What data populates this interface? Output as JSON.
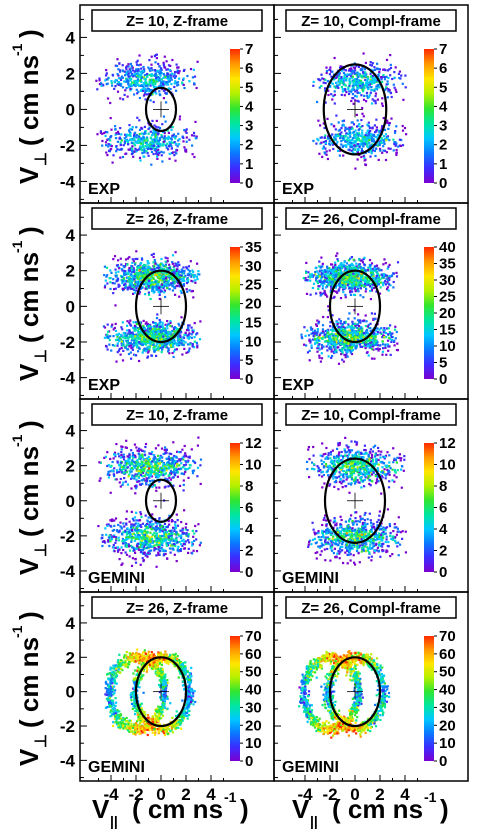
{
  "figure": {
    "y_axis_label": "V",
    "y_axis_sub": "⊥",
    "y_axis_unit": "( cm ns",
    "y_axis_unit_tail": ")",
    "x_axis_label": "V",
    "x_axis_sub": "||",
    "x_axis_unit": "( cm ns",
    "x_axis_unit_tail": ")",
    "exponent": "-1"
  },
  "colors": {
    "palette": [
      "#7a00d0",
      "#3c2cff",
      "#0a78ff",
      "#00c8ff",
      "#00e6a0",
      "#30e630",
      "#b4f000",
      "#ffe600",
      "#ff9800",
      "#ff2a00"
    ],
    "frame": "#000000",
    "background": "#ffffff"
  },
  "chart_data": [
    {
      "type": "heatmap",
      "title": "Z= 10, Z-frame",
      "label": "EXP",
      "xlim": [
        -6,
        6
      ],
      "ylim": [
        -5.2,
        5.8
      ],
      "y_ticks": [
        -4,
        -2,
        0,
        2,
        4
      ],
      "x_ticks": [],
      "colorbar": {
        "max": 7,
        "ticks": [
          0,
          1,
          2,
          3,
          4,
          5,
          6,
          7
        ]
      },
      "circle": {
        "center": [
          0,
          0
        ],
        "radius": 1.2
      },
      "cross": [
        0,
        0
      ],
      "distribution": {
        "shape": "two-lobe",
        "lobe_center_x": -1.2,
        "lobe_y": 1.7,
        "spread_x": 3.3,
        "spread_y": 0.9,
        "density": "sparse"
      }
    },
    {
      "type": "heatmap",
      "title": "Z= 10, Compl-frame",
      "label": "EXP",
      "xlim": [
        -6,
        6
      ],
      "ylim": [
        -5.2,
        5.8
      ],
      "y_ticks": [],
      "x_ticks": [],
      "colorbar": {
        "max": 7,
        "ticks": [
          0,
          1,
          2,
          3,
          4,
          5,
          6,
          7
        ]
      },
      "circle": {
        "center": [
          0,
          0
        ],
        "radius": 2.5
      },
      "cross": [
        0,
        0
      ],
      "distribution": {
        "shape": "two-lobe",
        "lobe_center_x": 0.3,
        "lobe_y": 1.6,
        "spread_x": 3.0,
        "spread_y": 0.9,
        "density": "sparse"
      }
    },
    {
      "type": "heatmap",
      "title": "Z= 26, Z-frame",
      "label": "EXP",
      "xlim": [
        -6,
        6
      ],
      "ylim": [
        -5.2,
        5.8
      ],
      "y_ticks": [
        -4,
        -2,
        0,
        2,
        4
      ],
      "x_ticks": [],
      "colorbar": {
        "max": 35,
        "ticks": [
          0,
          5,
          10,
          15,
          20,
          25,
          30,
          35
        ]
      },
      "circle": {
        "center": [
          0,
          0
        ],
        "radius": 2.0
      },
      "cross": [
        0,
        0
      ],
      "distribution": {
        "shape": "two-lobe",
        "lobe_center_x": -0.8,
        "lobe_y": 1.7,
        "spread_x": 3.1,
        "spread_y": 0.8,
        "density": "dense"
      }
    },
    {
      "type": "heatmap",
      "title": "Z= 26, Compl-frame",
      "label": "EXP",
      "xlim": [
        -6,
        6
      ],
      "ylim": [
        -5.2,
        5.8
      ],
      "y_ticks": [],
      "x_ticks": [],
      "colorbar": {
        "max": 40,
        "ticks": [
          0,
          5,
          10,
          15,
          20,
          25,
          30,
          35,
          40
        ]
      },
      "circle": {
        "center": [
          0,
          0
        ],
        "radius": 2.0
      },
      "cross": [
        0,
        0
      ],
      "distribution": {
        "shape": "two-lobe",
        "lobe_center_x": -0.5,
        "lobe_y": 1.7,
        "spread_x": 3.1,
        "spread_y": 0.8,
        "density": "dense"
      }
    },
    {
      "type": "heatmap",
      "title": "Z= 10, Z-frame",
      "label": "GEMINI",
      "xlim": [
        -6,
        6
      ],
      "ylim": [
        -5.2,
        5.8
      ],
      "y_ticks": [
        -4,
        -2,
        0,
        2,
        4
      ],
      "x_ticks": [],
      "colorbar": {
        "max": 12,
        "ticks": [
          0,
          2,
          4,
          6,
          8,
          10,
          12
        ]
      },
      "circle": {
        "center": [
          0,
          0
        ],
        "radius": 1.2
      },
      "cross": [
        0,
        0
      ],
      "distribution": {
        "shape": "two-lobe",
        "lobe_center_x": -1.0,
        "lobe_y": 2.0,
        "spread_x": 3.3,
        "spread_y": 1.0,
        "density": "medium"
      }
    },
    {
      "type": "heatmap",
      "title": "Z= 10, Compl-frame",
      "label": "GEMINI",
      "xlim": [
        -6,
        6
      ],
      "ylim": [
        -5.2,
        5.8
      ],
      "y_ticks": [],
      "x_ticks": [],
      "colorbar": {
        "max": 12,
        "ticks": [
          0,
          2,
          4,
          6,
          8,
          10,
          12
        ]
      },
      "circle": {
        "center": [
          0,
          0
        ],
        "radius": 2.4
      },
      "cross": [
        0,
        0
      ],
      "distribution": {
        "shape": "two-lobe",
        "lobe_center_x": 0.0,
        "lobe_y": 2.0,
        "spread_x": 3.2,
        "spread_y": 1.0,
        "density": "medium"
      }
    },
    {
      "type": "heatmap",
      "title": "Z= 26, Z-frame",
      "label": "GEMINI",
      "xlim": [
        -6,
        6
      ],
      "ylim": [
        -5.2,
        5.8
      ],
      "y_ticks": [
        -4,
        -2,
        0,
        2,
        4
      ],
      "x_ticks": [
        -4,
        -2,
        0,
        2,
        4
      ],
      "colorbar": {
        "max": 70,
        "ticks": [
          0,
          10,
          20,
          30,
          40,
          50,
          60,
          70
        ]
      },
      "circle": {
        "center": [
          0,
          0
        ],
        "radius": 2.0
      },
      "cross": [
        0,
        0
      ],
      "distribution": {
        "shape": "ring-pair",
        "ring_centers_x": [
          -2.0,
          0.0
        ],
        "ring_radius": 2.2,
        "density": "dense"
      }
    },
    {
      "type": "heatmap",
      "title": "Z= 26, Compl-frame",
      "label": "GEMINI",
      "xlim": [
        -6,
        6
      ],
      "ylim": [
        -5.2,
        5.8
      ],
      "y_ticks": [],
      "x_ticks": [
        -4,
        -2,
        0,
        2,
        4
      ],
      "colorbar": {
        "max": 70,
        "ticks": [
          0,
          10,
          20,
          30,
          40,
          50,
          60,
          70
        ]
      },
      "circle": {
        "center": [
          0,
          0
        ],
        "radius": 2.0
      },
      "cross": [
        0,
        0
      ],
      "distribution": {
        "shape": "ring-pair",
        "ring_centers_x": [
          -2.0,
          0.0
        ],
        "ring_radius": 2.2,
        "density": "dense"
      }
    }
  ]
}
